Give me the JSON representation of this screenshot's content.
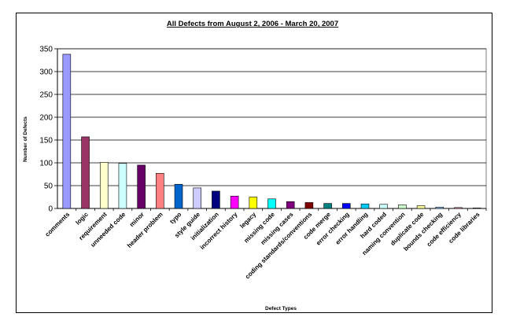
{
  "chart_data": {
    "type": "bar",
    "title": "All Defects from August 2, 2006 - March 20, 2007",
    "xlabel": "Defect Types",
    "ylabel": "Number of Defects",
    "ylim": [
      0,
      350
    ],
    "yticks": [
      0,
      50,
      100,
      150,
      200,
      250,
      300,
      350
    ],
    "grid": true,
    "categories": [
      "comments",
      "logic",
      "requirement",
      "unneeded code",
      "minor",
      "header problem",
      "typo",
      "style guide",
      "initialization",
      "incorrect history",
      "legacy",
      "missing code",
      "missing cases",
      "coding standards/conventions",
      "code merge",
      "error checking",
      "error handling",
      "hard coded",
      "naming convention",
      "duplicate code",
      "bounds checking",
      "code efficiency",
      "code libraries"
    ],
    "values": [
      338,
      157,
      101,
      99,
      95,
      77,
      53,
      45,
      38,
      27,
      25,
      21,
      15,
      13,
      11,
      11,
      10,
      9,
      8,
      6,
      3,
      2,
      1
    ],
    "colors": [
      "#9999ff",
      "#993366",
      "#ffffcc",
      "#ccffff",
      "#660066",
      "#ff8080",
      "#0066cc",
      "#ccccff",
      "#000080",
      "#ff00ff",
      "#ffff00",
      "#00ffff",
      "#800080",
      "#800000",
      "#008080",
      "#0000ff",
      "#00ccff",
      "#ccffff",
      "#ccffcc",
      "#ffff99",
      "#99ccff",
      "#ff99cc",
      "#cc99ff"
    ]
  }
}
